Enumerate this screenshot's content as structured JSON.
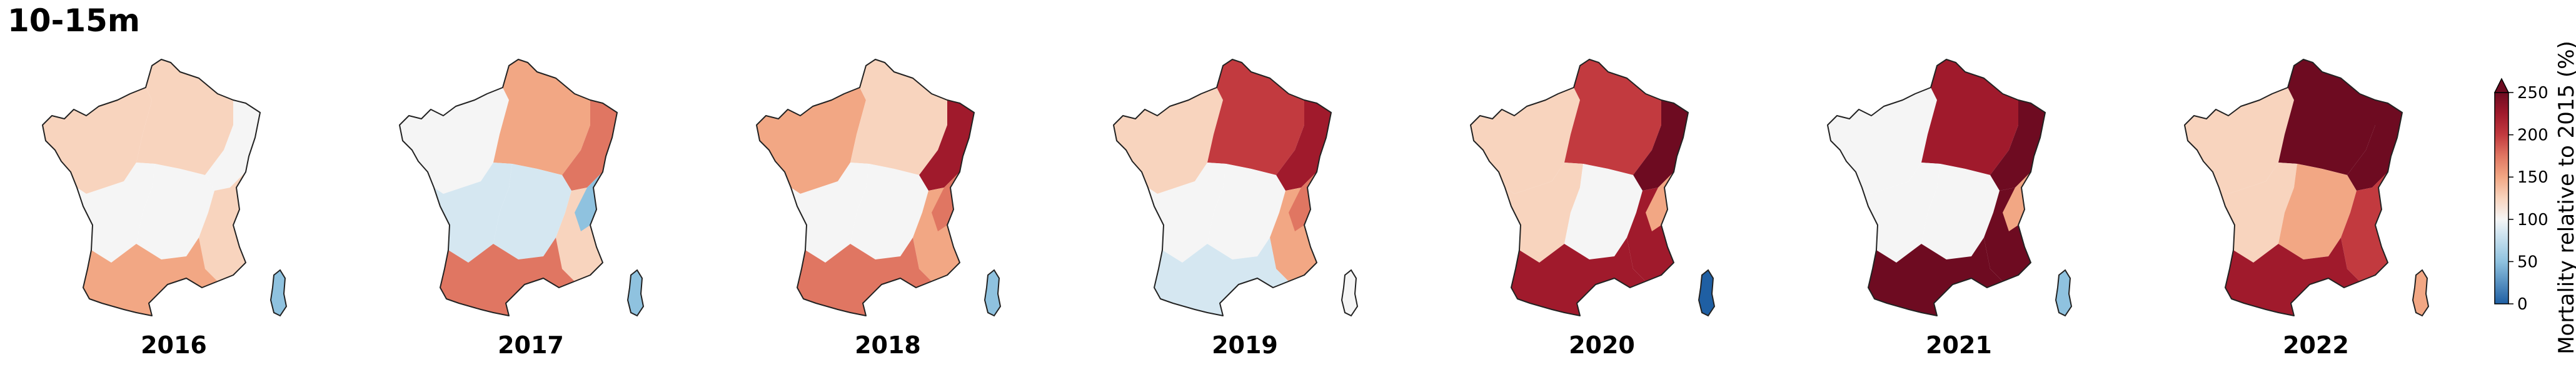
{
  "figure_title": "10-15m",
  "colors": {
    "c0": "#1f5fa3",
    "c50": "#8fc2df",
    "c85": "#d5e7f1",
    "c100": "#f5f5f5",
    "c125": "#f8d4be",
    "c150": "#f2a784",
    "c175": "#e07662",
    "c200": "#c23a3f",
    "c225": "#a01a2c",
    "c250": "#6e0b21"
  },
  "colorbar": {
    "label": "Mortality relative to 2015 (%)",
    "ticks": [
      "0",
      "50",
      "100",
      "150",
      "200",
      "250"
    ],
    "min": 0,
    "max": 250,
    "extend": "max"
  },
  "panels": [
    {
      "year": "2016",
      "regions": {
        "NW": "c125",
        "NE": "c125",
        "E": "c100",
        "SW": "c100",
        "S": "c100",
        "SE": "c125",
        "ALP": "c125",
        "MED": "c150"
      },
      "corsica": "c50"
    },
    {
      "year": "2017",
      "regions": {
        "NW": "c100",
        "NE": "c150",
        "E": "c175",
        "SW": "c85",
        "S": "c85",
        "SE": "c125",
        "ALP": "c50",
        "MED": "c175"
      },
      "corsica": "c50"
    },
    {
      "year": "2018",
      "regions": {
        "NW": "c150",
        "NE": "c125",
        "E": "c225",
        "SW": "c100",
        "S": "c100",
        "SE": "c150",
        "ALP": "c175",
        "MED": "c175"
      },
      "corsica": "c50"
    },
    {
      "year": "2019",
      "regions": {
        "NW": "c125",
        "NE": "c200",
        "E": "c225",
        "SW": "c100",
        "S": "c100",
        "SE": "c150",
        "ALP": "c175",
        "MED": "c85"
      },
      "corsica": "c100"
    },
    {
      "year": "2020",
      "regions": {
        "NW": "c125",
        "NE": "c200",
        "E": "c250",
        "SW": "c125",
        "S": "c100",
        "SE": "c225",
        "ALP": "c150",
        "MED": "c225"
      },
      "corsica": "c0"
    },
    {
      "year": "2021",
      "regions": {
        "NW": "c100",
        "NE": "c225",
        "E": "c250",
        "SW": "c100",
        "S": "c100",
        "SE": "c250",
        "ALP": "c150",
        "MED": "c250"
      },
      "corsica": "c50"
    },
    {
      "year": "2022",
      "regions": {
        "NW": "c125",
        "NE": "c250",
        "E": "c250",
        "SW": "c125",
        "S": "c150",
        "SE": "c200",
        "ALP": "c200",
        "MED": "c225"
      },
      "corsica": "c150"
    }
  ]
}
